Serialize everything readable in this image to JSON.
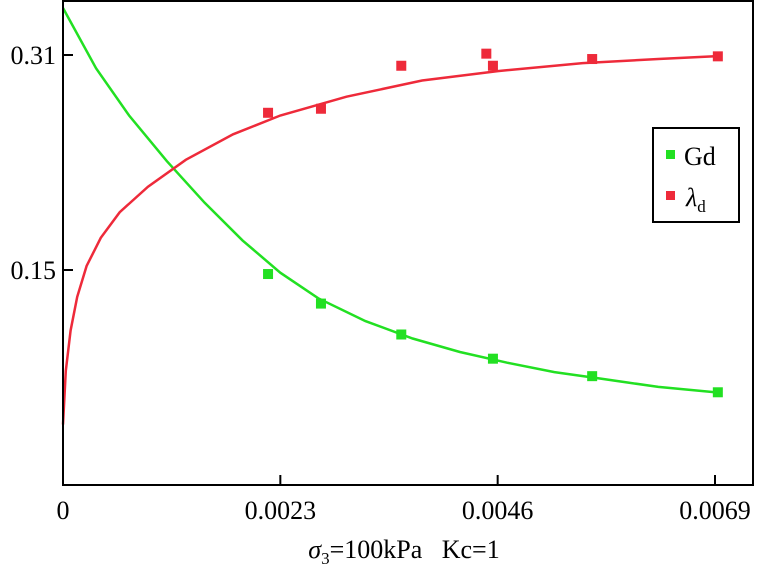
{
  "chart_data": {
    "type": "scatter",
    "x_ticks": [
      {
        "value": 0,
        "label": "0"
      },
      {
        "value": 0.0023,
        "label": "0.0023"
      },
      {
        "value": 0.0046,
        "label": "0.0046"
      },
      {
        "value": 0.0069,
        "label": "0.0069"
      }
    ],
    "y_ticks": [
      {
        "value": 0.15,
        "label": "0.15"
      },
      {
        "value": 0.31,
        "label": "0.31"
      }
    ],
    "xlim": [
      0,
      0.0074
    ],
    "ylim": [
      -0.01,
      0.3475
    ],
    "xlabel": {
      "symbol": "σ",
      "subscript": "3",
      "rest": "=100kPa   Kc=1"
    },
    "ylabel": "",
    "grid": false,
    "legend_position": "right",
    "series": [
      {
        "name": "Gd",
        "name_sub": "",
        "color": "#22e022",
        "points": [
          {
            "x": 0.00217,
            "y": 0.147
          },
          {
            "x": 0.00273,
            "y": 0.125
          },
          {
            "x": 0.00358,
            "y": 0.102
          },
          {
            "x": 0.00455,
            "y": 0.084
          },
          {
            "x": 0.0056,
            "y": 0.071
          },
          {
            "x": 0.00693,
            "y": 0.059
          }
        ],
        "fit_curve": [
          {
            "x": 0.0,
            "y": 0.345
          },
          {
            "x": 0.00035,
            "y": 0.3
          },
          {
            "x": 0.0007,
            "y": 0.265
          },
          {
            "x": 0.0011,
            "y": 0.231
          },
          {
            "x": 0.0015,
            "y": 0.2
          },
          {
            "x": 0.0019,
            "y": 0.172
          },
          {
            "x": 0.0023,
            "y": 0.148
          },
          {
            "x": 0.0027,
            "y": 0.129
          },
          {
            "x": 0.0032,
            "y": 0.112
          },
          {
            "x": 0.0037,
            "y": 0.099
          },
          {
            "x": 0.0042,
            "y": 0.089
          },
          {
            "x": 0.0047,
            "y": 0.081
          },
          {
            "x": 0.0052,
            "y": 0.074
          },
          {
            "x": 0.0057,
            "y": 0.069
          },
          {
            "x": 0.0063,
            "y": 0.063
          },
          {
            "x": 0.0069,
            "y": 0.059
          }
        ]
      },
      {
        "name": "λ",
        "name_sub": "d",
        "color": "#ee2a3a",
        "points": [
          {
            "x": 0.00217,
            "y": 0.267
          },
          {
            "x": 0.00273,
            "y": 0.27
          },
          {
            "x": 0.00358,
            "y": 0.302
          },
          {
            "x": 0.00448,
            "y": 0.311
          },
          {
            "x": 0.00455,
            "y": 0.302
          },
          {
            "x": 0.0056,
            "y": 0.307
          },
          {
            "x": 0.00693,
            "y": 0.309
          }
        ],
        "fit_curve": [
          {
            "x": 0.0,
            "y": 0.035
          },
          {
            "x": 3e-05,
            "y": 0.075
          },
          {
            "x": 8e-05,
            "y": 0.105
          },
          {
            "x": 0.00015,
            "y": 0.13
          },
          {
            "x": 0.00025,
            "y": 0.153
          },
          {
            "x": 0.0004,
            "y": 0.174
          },
          {
            "x": 0.0006,
            "y": 0.193
          },
          {
            "x": 0.0009,
            "y": 0.212
          },
          {
            "x": 0.0013,
            "y": 0.232
          },
          {
            "x": 0.0018,
            "y": 0.251
          },
          {
            "x": 0.0023,
            "y": 0.265
          },
          {
            "x": 0.003,
            "y": 0.279
          },
          {
            "x": 0.0038,
            "y": 0.291
          },
          {
            "x": 0.0046,
            "y": 0.298
          },
          {
            "x": 0.0055,
            "y": 0.304
          },
          {
            "x": 0.0063,
            "y": 0.307
          },
          {
            "x": 0.0069,
            "y": 0.309
          }
        ]
      }
    ]
  }
}
